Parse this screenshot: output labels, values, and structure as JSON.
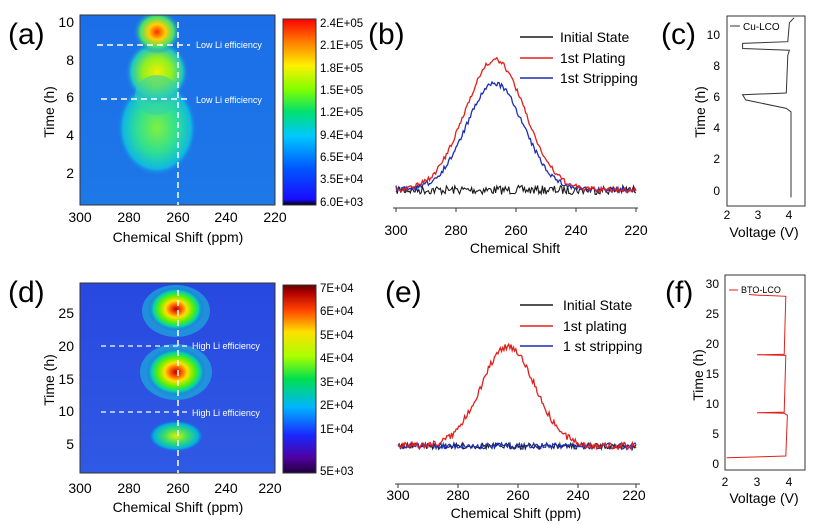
{
  "colors": {
    "black": "#1a1a1a",
    "red": "#e0201c",
    "blue": "#1c2fb4",
    "heat_bg_a": "#1870e8",
    "heat_bg_b": "#2a4fe0"
  },
  "chart_data": [
    {
      "id": "a",
      "panel_label": "(a)",
      "type": "heatmap",
      "xlabel": "Chemical Shift (ppm)",
      "ylabel": "Time (h)",
      "xlim": [
        300,
        220
      ],
      "ylim": [
        0,
        10.5
      ],
      "xticks": [
        300,
        280,
        260,
        240,
        220
      ],
      "yticks": [
        2,
        4,
        6,
        8,
        10
      ],
      "colorbar": {
        "min": 6000,
        "max": 240000,
        "ticks": [
          "2.4E+05",
          "2.1E+05",
          "1.8E+05",
          "1.5E+05",
          "1.2E+05",
          "9.4E+04",
          "6.5E+04",
          "3.5E+04",
          "6.0E+03"
        ]
      },
      "annotations": [
        {
          "text": "Low Li efficiency",
          "y": 8.8
        },
        {
          "text": "Low Li efficiency",
          "y": 5.9
        }
      ],
      "vline_x": 260,
      "blobs": [
        {
          "x": 268,
          "t": 9.6,
          "intensity": 240000
        },
        {
          "x": 268,
          "t": 7.6,
          "intensity": 200000
        },
        {
          "x": 268,
          "t": 4.4,
          "intensity": 150000
        }
      ]
    },
    {
      "id": "b",
      "panel_label": "(b)",
      "type": "line",
      "xlabel": "Chemical Shift",
      "ylabel": "",
      "xlim": [
        300,
        220
      ],
      "xticks": [
        300,
        280,
        260,
        240,
        220
      ],
      "legend": [
        "Initial State",
        "1st Plating",
        "1st Stripping"
      ],
      "series": [
        {
          "name": "Initial State",
          "color": "black",
          "peak": 0.0,
          "center": 267,
          "width": 10
        },
        {
          "name": "1st Plating",
          "color": "red",
          "peak": 1.0,
          "center": 267,
          "width": 10
        },
        {
          "name": "1st Stripping",
          "color": "blue",
          "peak": 0.82,
          "center": 267,
          "width": 9.5
        }
      ]
    },
    {
      "id": "c",
      "panel_label": "(c)",
      "type": "line",
      "xlabel": "Voltage (V)",
      "ylabel": "Time (h)",
      "xlim": [
        2,
        4.5
      ],
      "ylim": [
        -0.5,
        10.6
      ],
      "xticks": [
        2,
        3,
        4
      ],
      "yticks": [
        0,
        2,
        4,
        6,
        8,
        10
      ],
      "legend": [
        "Cu-LCO"
      ],
      "voltage_time": [
        [
          4.05,
          0
        ],
        [
          4.05,
          5
        ],
        [
          3.9,
          5.2
        ],
        [
          2.6,
          5.7
        ],
        [
          2.5,
          6
        ],
        [
          3.9,
          6.1
        ],
        [
          3.95,
          8.3
        ],
        [
          4.0,
          8.6
        ],
        [
          2.5,
          8.7
        ],
        [
          2.5,
          9
        ],
        [
          3.95,
          9.1
        ],
        [
          4.0,
          10.2
        ],
        [
          4.15,
          10.5
        ]
      ]
    },
    {
      "id": "d",
      "panel_label": "(d)",
      "type": "heatmap",
      "xlabel": "Chemical Shift (ppm)",
      "ylabel": "Time (h)",
      "xlim": [
        300,
        220
      ],
      "ylim": [
        0,
        29
      ],
      "xticks": [
        300,
        280,
        260,
        240,
        220
      ],
      "yticks": [
        5,
        10,
        15,
        20,
        25
      ],
      "colorbar": {
        "min": 5000,
        "max": 70000,
        "ticks": [
          "7E+04",
          "6E+04",
          "5E+04",
          "4E+04",
          "3E+04",
          "2E+04",
          "1E+04",
          "5E+03"
        ]
      },
      "annotations": [
        {
          "text": "High Li efficiency",
          "y": 20
        },
        {
          "text": "High Li efficiency",
          "y": 9.5
        }
      ],
      "vline_x": 260,
      "blobs": [
        {
          "x": 262,
          "t": 25.5,
          "intensity": 70000
        },
        {
          "x": 262,
          "t": 16,
          "intensity": 65000
        },
        {
          "x": 262,
          "t": 6,
          "intensity": 35000
        }
      ]
    },
    {
      "id": "e",
      "panel_label": "(e)",
      "type": "line",
      "xlabel": "Chemical Shift (ppm)",
      "ylabel": "",
      "xlim": [
        300,
        220
      ],
      "xticks": [
        300,
        280,
        260,
        240,
        220
      ],
      "legend": [
        "Initial State",
        "1st plating",
        "1 st stripping"
      ],
      "series": [
        {
          "name": "Initial State",
          "color": "black",
          "peak": 0.0
        },
        {
          "name": "1st plating",
          "color": "red",
          "peak": 1.0,
          "center": 263,
          "width": 9
        },
        {
          "name": "1 st stripping",
          "color": "blue",
          "peak": 0.0
        }
      ]
    },
    {
      "id": "f",
      "panel_label": "(f)",
      "type": "line",
      "xlabel": "Voltage (V)",
      "ylabel": "Time (h)",
      "xlim": [
        2,
        4.5
      ],
      "ylim": [
        -2,
        30
      ],
      "xticks": [
        2,
        3,
        4
      ],
      "yticks": [
        0,
        5,
        10,
        15,
        20,
        25,
        30
      ],
      "legend": [
        "BTO-LCO"
      ],
      "voltage_time": [
        [
          2.05,
          0
        ],
        [
          3.9,
          0.3
        ],
        [
          3.95,
          7
        ],
        [
          3.85,
          7.3
        ],
        [
          3.0,
          7.4
        ],
        [
          3.85,
          7.5
        ],
        [
          3.9,
          16.8
        ],
        [
          3.0,
          16.9
        ],
        [
          3.85,
          17
        ],
        [
          3.9,
          26.5
        ],
        [
          3.0,
          26.7
        ],
        [
          2.75,
          26.8
        ]
      ]
    }
  ]
}
